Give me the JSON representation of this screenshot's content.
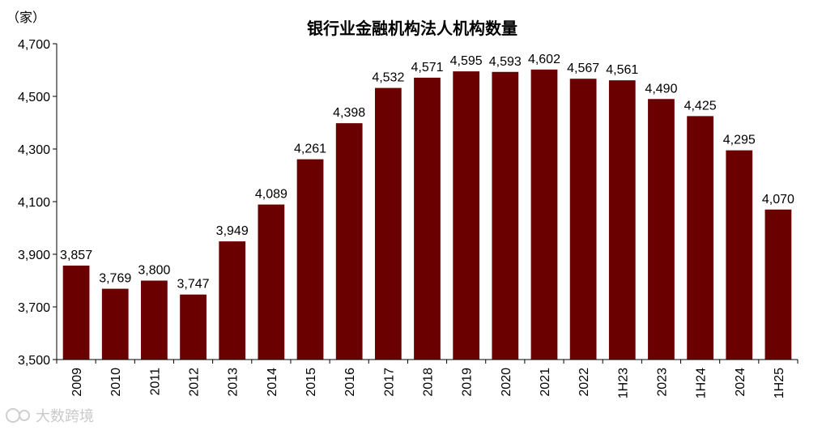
{
  "chart_data": {
    "type": "bar",
    "title": "银行业金融机构法人机构数量",
    "unit_label": "（家）",
    "categories": [
      "2009",
      "2010",
      "2011",
      "2012",
      "2013",
      "2014",
      "2015",
      "2016",
      "2017",
      "2018",
      "2019",
      "2020",
      "2021",
      "2022",
      "1H23",
      "2023",
      "1H24",
      "2024",
      "1H25"
    ],
    "values": [
      3857,
      3769,
      3800,
      3747,
      3949,
      4089,
      4261,
      4398,
      4532,
      4571,
      4595,
      4593,
      4602,
      4567,
      4561,
      4490,
      4425,
      4295,
      4070
    ],
    "data_labels": [
      "3,857",
      "3,769",
      "3,800",
      "3,747",
      "3,949",
      "4,089",
      "4,261",
      "4,398",
      "4,532",
      "4,571",
      "4,595",
      "4,593",
      "4,602",
      "4,567",
      "4,561",
      "4,490",
      "4,425",
      "4,295",
      "4,070"
    ],
    "ylim": [
      3500,
      4700
    ],
    "yticks": [
      3500,
      3700,
      3900,
      4100,
      4300,
      4500,
      4700
    ],
    "ytick_labels": [
      "3,500",
      "3,700",
      "3,900",
      "4,100",
      "4,300",
      "4,500",
      "4,700"
    ],
    "bar_color": "#6b0000",
    "grid": false,
    "legend": "none"
  },
  "watermark": {
    "text": "大数跨境",
    "icon": "watermark-logo-icon"
  }
}
